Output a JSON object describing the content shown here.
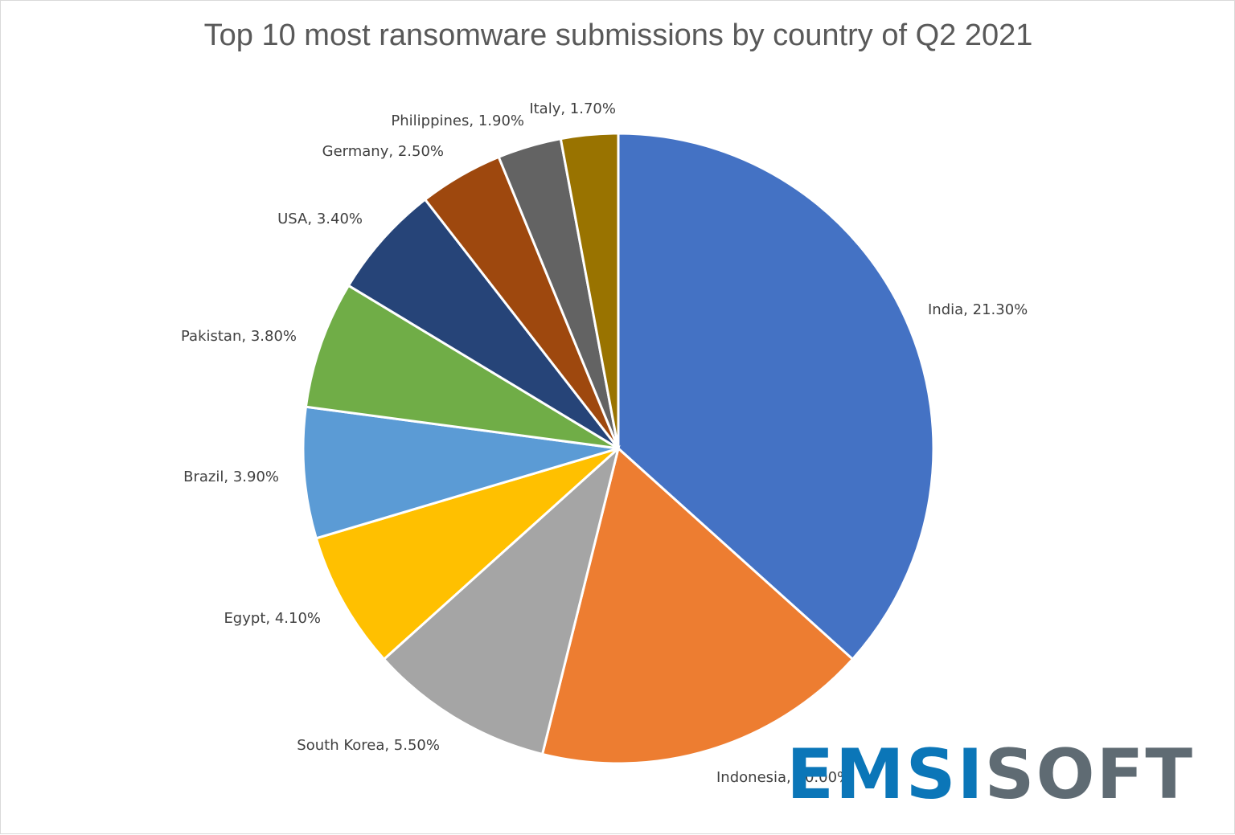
{
  "chart_data": {
    "type": "pie",
    "title": "Top 10 most ransomware submissions by country of Q2 2021",
    "slices": [
      {
        "label": "India",
        "value": 21.3,
        "display": "India, 21.30%",
        "color": "#4472c4"
      },
      {
        "label": "Indonesia",
        "value": 10.0,
        "display": "Indonesia, 10.00%",
        "color": "#ed7d31"
      },
      {
        "label": "South Korea",
        "value": 5.5,
        "display": "South Korea, 5.50%",
        "color": "#a5a5a5"
      },
      {
        "label": "Egypt",
        "value": 4.1,
        "display": "Egypt, 4.10%",
        "color": "#ffc000"
      },
      {
        "label": "Brazil",
        "value": 3.9,
        "display": "Brazil, 3.90%",
        "color": "#5b9bd5"
      },
      {
        "label": "Pakistan",
        "value": 3.8,
        "display": "Pakistan, 3.80%",
        "color": "#70ad47"
      },
      {
        "label": "USA",
        "value": 3.4,
        "display": "USA, 3.40%",
        "color": "#264478"
      },
      {
        "label": "Germany",
        "value": 2.5,
        "display": "Germany, 2.50%",
        "color": "#9e480e"
      },
      {
        "label": "Philippines",
        "value": 1.9,
        "display": "Philippines, 1.90%",
        "color": "#636363"
      },
      {
        "label": "Italy",
        "value": 1.7,
        "display": "Italy, 1.70%",
        "color": "#997300"
      }
    ],
    "start_angle": "12 o'clock",
    "direction": "clockwise",
    "legend": "none"
  },
  "logo": {
    "part1": "EMSI",
    "part2": "SOFT",
    "color1": "#0b76b8",
    "color2": "#5f6b73"
  }
}
